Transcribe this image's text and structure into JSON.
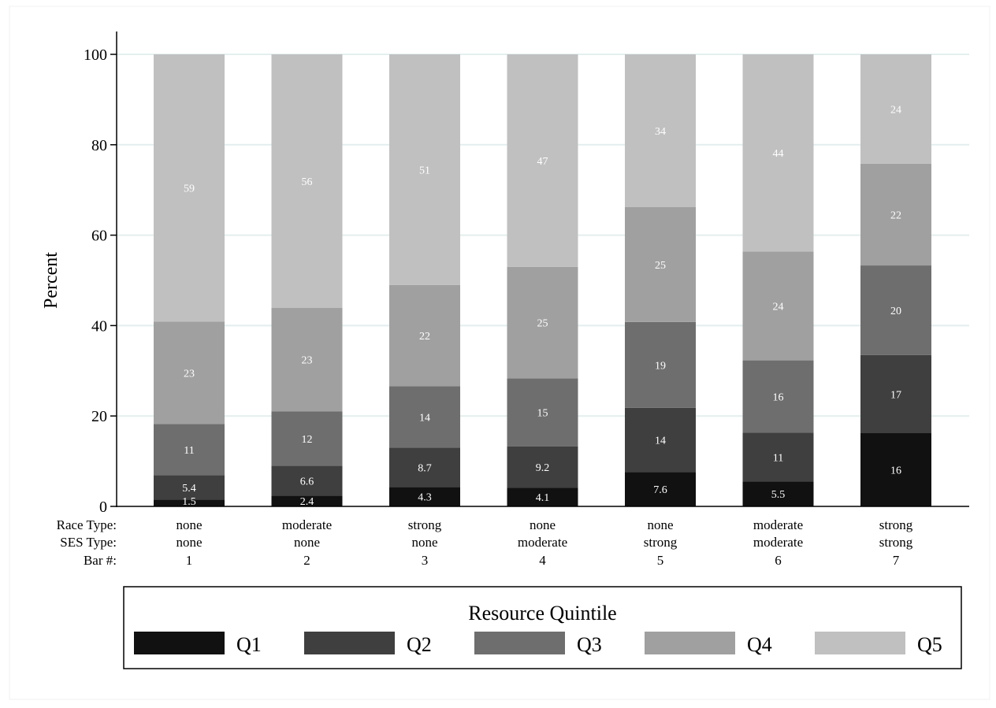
{
  "chart_data": {
    "type": "bar",
    "stacked": true,
    "ylabel": "Percent",
    "ylim": [
      0,
      100
    ],
    "yticks": [
      0,
      20,
      40,
      60,
      80,
      100
    ],
    "grid": true,
    "row_labels": [
      "Race Type:",
      "SES Type:",
      "Bar #:"
    ],
    "categories": [
      {
        "race": "none",
        "ses": "none",
        "bar": "1"
      },
      {
        "race": "moderate",
        "ses": "none",
        "bar": "2"
      },
      {
        "race": "strong",
        "ses": "none",
        "bar": "3"
      },
      {
        "race": "none",
        "ses": "moderate",
        "bar": "4"
      },
      {
        "race": "none",
        "ses": "strong",
        "bar": "5"
      },
      {
        "race": "moderate",
        "ses": "moderate",
        "bar": "6"
      },
      {
        "race": "strong",
        "ses": "strong",
        "bar": "7"
      }
    ],
    "series": [
      {
        "name": "Q1",
        "color": "#111111",
        "values": [
          1.5,
          2.4,
          4.3,
          4.1,
          7.6,
          5.5,
          16.2
        ],
        "labels": [
          "1.5",
          "2.4",
          "4.3",
          "4.1",
          "7.6",
          "5.5",
          "16"
        ]
      },
      {
        "name": "Q2",
        "color": "#3f3f3f",
        "values": [
          5.4,
          6.6,
          8.7,
          9.2,
          14.2,
          10.8,
          17.3
        ],
        "labels": [
          "5.4",
          "6.6",
          "8.7",
          "9.2",
          "14",
          "11",
          "17"
        ]
      },
      {
        "name": "Q3",
        "color": "#6e6e6e",
        "values": [
          11.3,
          12.0,
          13.6,
          15.0,
          19.0,
          16.0,
          19.8
        ],
        "labels": [
          "11",
          "12",
          "14",
          "15",
          "19",
          "16",
          "20"
        ]
      },
      {
        "name": "Q4",
        "color": "#a0a0a0",
        "values": [
          22.7,
          22.9,
          22.4,
          24.7,
          25.4,
          24.1,
          22.5
        ],
        "labels": [
          "23",
          "23",
          "22",
          "25",
          "25",
          "24",
          "22"
        ]
      },
      {
        "name": "Q5",
        "color": "#c0c0c0",
        "values": [
          59.1,
          56.1,
          51.0,
          47.0,
          33.8,
          43.6,
          24.2
        ],
        "labels": [
          "59",
          "56",
          "51",
          "47",
          "34",
          "44",
          "24"
        ]
      }
    ],
    "legend": {
      "title": "Resource Quintile",
      "position": "bottom"
    }
  }
}
